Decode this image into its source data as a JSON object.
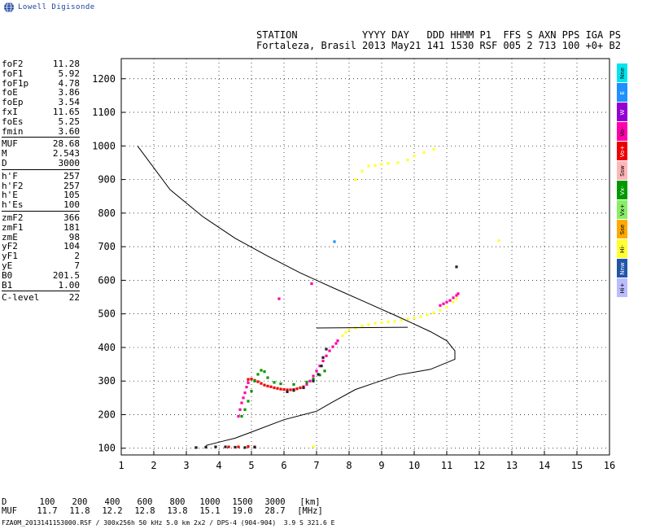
{
  "logo": {
    "text": "Lowell Digisonde"
  },
  "header": {
    "line1": "STATION           YYYY DAY   DDD HHMM P1  FFS S AXN PPS IGA PS",
    "line2": "Fortaleza, Brasil 2013 May21 141 1530 RSF 005 2 713 100 +0+ B2"
  },
  "params": [
    [
      {
        "label": "foF2",
        "value": "11.28"
      },
      {
        "label": "foF1",
        "value": "5.92"
      },
      {
        "label": "foF1p",
        "value": "4.78"
      },
      {
        "label": "foE",
        "value": "3.86"
      },
      {
        "label": "foEp",
        "value": "3.54"
      },
      {
        "label": "fxI",
        "value": "11.65"
      },
      {
        "label": "foEs",
        "value": "5.25"
      },
      {
        "label": "fmin",
        "value": "3.60"
      }
    ],
    [
      {
        "label": "MUF",
        "value": "28.68"
      },
      {
        "label": "M",
        "value": "2.543"
      },
      {
        "label": "D",
        "value": "3000"
      }
    ],
    [
      {
        "label": "h'F",
        "value": "257"
      },
      {
        "label": "h'F2",
        "value": "257"
      },
      {
        "label": "h'E",
        "value": "105"
      },
      {
        "label": "h'Es",
        "value": "100"
      }
    ],
    [
      {
        "label": "zmF2",
        "value": "366"
      },
      {
        "label": "zmF1",
        "value": "181"
      },
      {
        "label": "zmE",
        "value": "98"
      },
      {
        "label": "yF2",
        "value": "104"
      },
      {
        "label": "yF1",
        "value": "2"
      },
      {
        "label": "yE",
        "value": "7"
      },
      {
        "label": "B0",
        "value": "201.5"
      },
      {
        "label": "B1",
        "value": "1.00"
      }
    ],
    [
      {
        "label": "C-level",
        "value": "22"
      }
    ]
  ],
  "legend": [
    {
      "label": "Nne",
      "color": "#00e5ee"
    },
    {
      "label": "E",
      "color": "#1e90ff"
    },
    {
      "label": "W",
      "color": "#9400d3"
    },
    {
      "label": "Vo-",
      "color": "#ff00aa"
    },
    {
      "label": "Vo+",
      "color": "#ee0000"
    },
    {
      "label": "Ssw",
      "color": "#ffb6b6"
    },
    {
      "label": "Vx-",
      "color": "#009900"
    },
    {
      "label": "Vx+",
      "color": "#88ee66"
    },
    {
      "label": "Sse",
      "color": "#ffaa00"
    },
    {
      "label": "Hi-",
      "color": "#ffff33"
    },
    {
      "label": "Nnw",
      "color": "#2255aa"
    },
    {
      "label": "Hi+",
      "color": "#bbbbff"
    }
  ],
  "muf_table": {
    "d_label": "D",
    "muf_label": "MUF",
    "d_values": [
      "100",
      "200",
      "400",
      "600",
      "800",
      "1000",
      "1500",
      "3000"
    ],
    "muf_values": [
      "11.7",
      "11.8",
      "12.2",
      "12.8",
      "13.8",
      "15.1",
      "19.0",
      "28.7"
    ],
    "d_unit": "[km]",
    "muf_unit": "[MHz]"
  },
  "footer": "FZA0M_2013141153000.RSF / 300x256h 50 kHz 5.0 km 2x2 / DPS-4 (904-904)  3.9 S 321.6 E",
  "chart_data": {
    "type": "scatter",
    "xlim": [
      1,
      16
    ],
    "ylim": [
      80,
      1260
    ],
    "x_ticks": [
      "1",
      "2",
      "3",
      "4",
      "5",
      "6",
      "7",
      "8",
      "9",
      "10",
      "11",
      "12",
      "13",
      "14",
      "15",
      "16"
    ],
    "y_ticks": [
      "100",
      "200",
      "300",
      "400",
      "500",
      "600",
      "700",
      "800",
      "900",
      "1000",
      "1100",
      "1200"
    ],
    "grid": "dotted",
    "profile": {
      "points": [
        [
          1.5,
          1000
        ],
        [
          2.5,
          870
        ],
        [
          3.5,
          790
        ],
        [
          4.5,
          725
        ],
        [
          5.5,
          672
        ],
        [
          6.5,
          622
        ],
        [
          7.5,
          578
        ],
        [
          8.5,
          535
        ],
        [
          9.5,
          492
        ],
        [
          10.5,
          447
        ],
        [
          11.0,
          420
        ],
        [
          11.25,
          390
        ],
        [
          11.25,
          365
        ],
        [
          10.5,
          335
        ],
        [
          9.5,
          318
        ],
        [
          8.8,
          295
        ],
        [
          8.2,
          275
        ],
        [
          7.5,
          238
        ],
        [
          7.0,
          210
        ],
        [
          6.0,
          185
        ],
        [
          5.0,
          148
        ],
        [
          4.5,
          130
        ],
        [
          4.0,
          118
        ],
        [
          3.6,
          108
        ]
      ]
    },
    "hline": {
      "x": [
        7.0,
        9.8
      ],
      "y": [
        458,
        460
      ]
    },
    "traces": [
      {
        "color": "#ee0000",
        "points": [
          [
            4.9,
            305
          ],
          [
            5.0,
            306
          ],
          [
            5.1,
            302
          ],
          [
            5.2,
            298
          ],
          [
            5.3,
            293
          ],
          [
            5.4,
            288
          ],
          [
            5.5,
            285
          ],
          [
            5.6,
            283
          ],
          [
            5.7,
            280
          ],
          [
            5.8,
            278
          ],
          [
            5.9,
            276
          ],
          [
            6.0,
            275
          ],
          [
            6.1,
            274
          ],
          [
            6.2,
            274
          ],
          [
            6.3,
            275
          ],
          [
            6.4,
            277
          ],
          [
            6.5,
            280
          ],
          [
            6.6,
            283
          ],
          [
            4.3,
            104
          ],
          [
            4.6,
            104
          ],
          [
            4.9,
            105
          ],
          [
            5.1,
            104
          ]
        ]
      },
      {
        "color": "#ff00aa",
        "points": [
          [
            4.6,
            195
          ],
          [
            4.65,
            215
          ],
          [
            4.7,
            235
          ],
          [
            4.75,
            250
          ],
          [
            4.8,
            265
          ],
          [
            4.85,
            282
          ],
          [
            4.9,
            295
          ],
          [
            6.7,
            290
          ],
          [
            6.8,
            300
          ],
          [
            6.9,
            315
          ],
          [
            7.0,
            330
          ],
          [
            7.1,
            345
          ],
          [
            7.2,
            360
          ],
          [
            7.3,
            375
          ],
          [
            7.4,
            390
          ],
          [
            7.5,
            402
          ],
          [
            7.6,
            412
          ],
          [
            7.65,
            420
          ],
          [
            10.8,
            525
          ],
          [
            10.9,
            530
          ],
          [
            11.0,
            535
          ],
          [
            11.1,
            540
          ],
          [
            11.2,
            548
          ],
          [
            11.3,
            555
          ],
          [
            11.35,
            560
          ],
          [
            5.85,
            545
          ],
          [
            6.85,
            590
          ]
        ]
      },
      {
        "color": "#009900",
        "points": [
          [
            4.7,
            195
          ],
          [
            4.8,
            215
          ],
          [
            4.9,
            240
          ],
          [
            5.0,
            270
          ],
          [
            5.1,
            300
          ],
          [
            5.2,
            320
          ],
          [
            5.3,
            332
          ],
          [
            5.4,
            328
          ],
          [
            5.5,
            310
          ],
          [
            5.7,
            296
          ],
          [
            5.9,
            292
          ],
          [
            6.3,
            290
          ],
          [
            6.7,
            297
          ],
          [
            6.9,
            306
          ],
          [
            7.1,
            318
          ],
          [
            7.25,
            330
          ]
        ]
      },
      {
        "color": "#ffff33",
        "points": [
          [
            7.8,
            435
          ],
          [
            7.9,
            445
          ],
          [
            8.0,
            452
          ],
          [
            8.2,
            458
          ],
          [
            8.4,
            464
          ],
          [
            8.6,
            468
          ],
          [
            8.8,
            472
          ],
          [
            9.0,
            474
          ],
          [
            9.2,
            476
          ],
          [
            9.4,
            478
          ],
          [
            9.6,
            481
          ],
          [
            9.8,
            485
          ],
          [
            10.0,
            488
          ],
          [
            10.2,
            492
          ],
          [
            10.4,
            497
          ],
          [
            10.6,
            503
          ],
          [
            10.8,
            510
          ],
          [
            11.0,
            520
          ],
          [
            11.2,
            535
          ],
          [
            11.3,
            545
          ],
          [
            8.2,
            900
          ],
          [
            8.4,
            925
          ],
          [
            8.6,
            940
          ],
          [
            8.8,
            942
          ],
          [
            9.0,
            945
          ],
          [
            9.2,
            948
          ],
          [
            9.5,
            950
          ],
          [
            9.8,
            958
          ],
          [
            10.0,
            970
          ],
          [
            10.3,
            980
          ],
          [
            10.6,
            990
          ],
          [
            12.6,
            718
          ],
          [
            6.9,
            105
          ]
        ]
      },
      {
        "color": "#222222",
        "points": [
          [
            3.3,
            102
          ],
          [
            3.6,
            103
          ],
          [
            3.9,
            104
          ],
          [
            4.2,
            104
          ],
          [
            4.5,
            103
          ],
          [
            4.8,
            102
          ],
          [
            5.1,
            103
          ],
          [
            6.1,
            268
          ],
          [
            6.3,
            272
          ],
          [
            6.6,
            280
          ],
          [
            6.9,
            300
          ],
          [
            7.05,
            320
          ],
          [
            7.15,
            345
          ],
          [
            7.2,
            370
          ],
          [
            7.3,
            395
          ],
          [
            11.3,
            640
          ]
        ]
      },
      {
        "color": "#1e90ff",
        "points": [
          [
            7.55,
            715
          ]
        ]
      }
    ]
  }
}
